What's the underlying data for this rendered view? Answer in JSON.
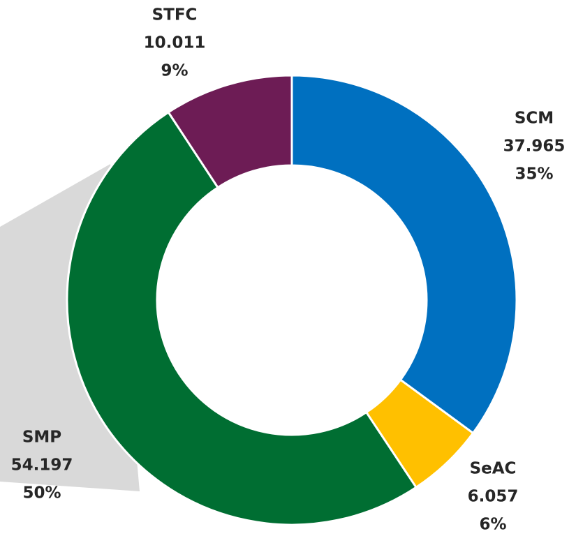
{
  "chart_data": {
    "type": "donut",
    "categories": [
      "SCM",
      "SeAC",
      "SMP",
      "STFC"
    ],
    "values": [
      37.965,
      6.057,
      54.197,
      10.011
    ],
    "percentages": [
      35,
      6,
      50,
      9
    ],
    "percentage_labels": [
      "35%",
      "6%",
      "50%",
      "9%"
    ],
    "colors": [
      "#0070c0",
      "#ffc000",
      "#006e32",
      "#6d1c55"
    ]
  }
}
